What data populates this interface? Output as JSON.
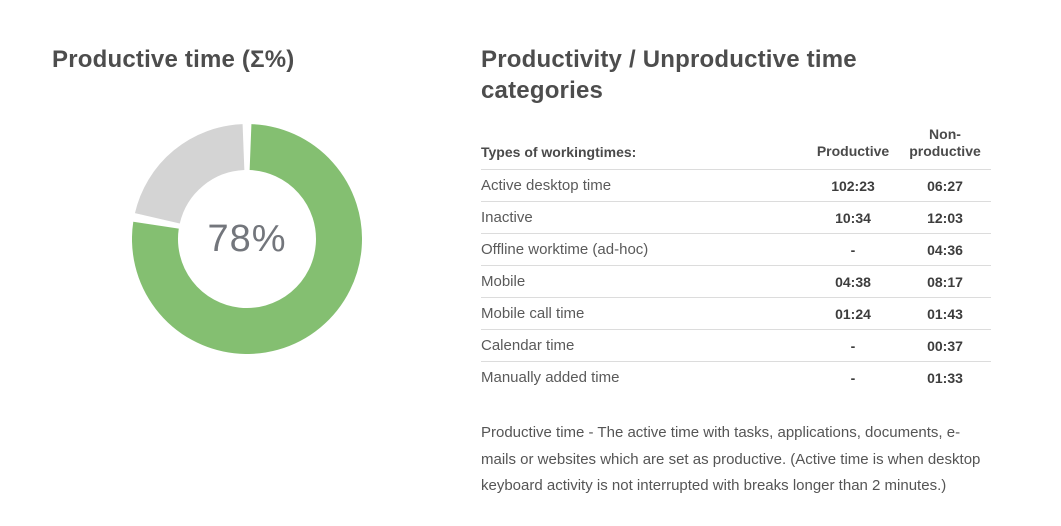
{
  "chart_panel": {
    "title": "Productive time (Σ%)"
  },
  "chart_data": {
    "type": "pie",
    "donut": true,
    "title": "Productive time (Σ%)",
    "categories": [
      "Productive",
      "Non-productive"
    ],
    "values": [
      78,
      22
    ],
    "unit": "%",
    "center_label": "78%",
    "colors": [
      "#84bf71",
      "#d4d4d4"
    ],
    "start_angle_deg": -90,
    "legend": "none"
  },
  "table_panel": {
    "title": "Productivity / Unproductive time categories",
    "table": {
      "header": {
        "label": "Types of workingtimes:",
        "productive": "Productive",
        "nonproductive": "Non-productive"
      },
      "rows": [
        {
          "label": "Active desktop time",
          "productive": "102:23",
          "nonproductive": "06:27"
        },
        {
          "label": "Inactive",
          "productive": "10:34",
          "nonproductive": "12:03"
        },
        {
          "label": "Offline worktime (ad-hoc)",
          "productive": "-",
          "nonproductive": "04:36"
        },
        {
          "label": "Mobile",
          "productive": "04:38",
          "nonproductive": "08:17"
        },
        {
          "label": "Mobile call time",
          "productive": "01:24",
          "nonproductive": "01:43"
        },
        {
          "label": "Calendar time",
          "productive": "-",
          "nonproductive": "00:37"
        },
        {
          "label": "Manually added time",
          "productive": "-",
          "nonproductive": "01:33"
        }
      ]
    },
    "footnote": "Productive time - The active time with tasks, applications, documents, e-mails or websites which are set as productive. (Active time is when desktop keyboard activity is not interrupted with breaks longer than 2 minutes.)"
  },
  "colors": {
    "productive_green": "#84bf71",
    "unproductive_gray": "#d4d4d4",
    "title_text": "#4d4d4d",
    "row_divider": "#dcdcdc",
    "center_label_text": "#73767c"
  }
}
